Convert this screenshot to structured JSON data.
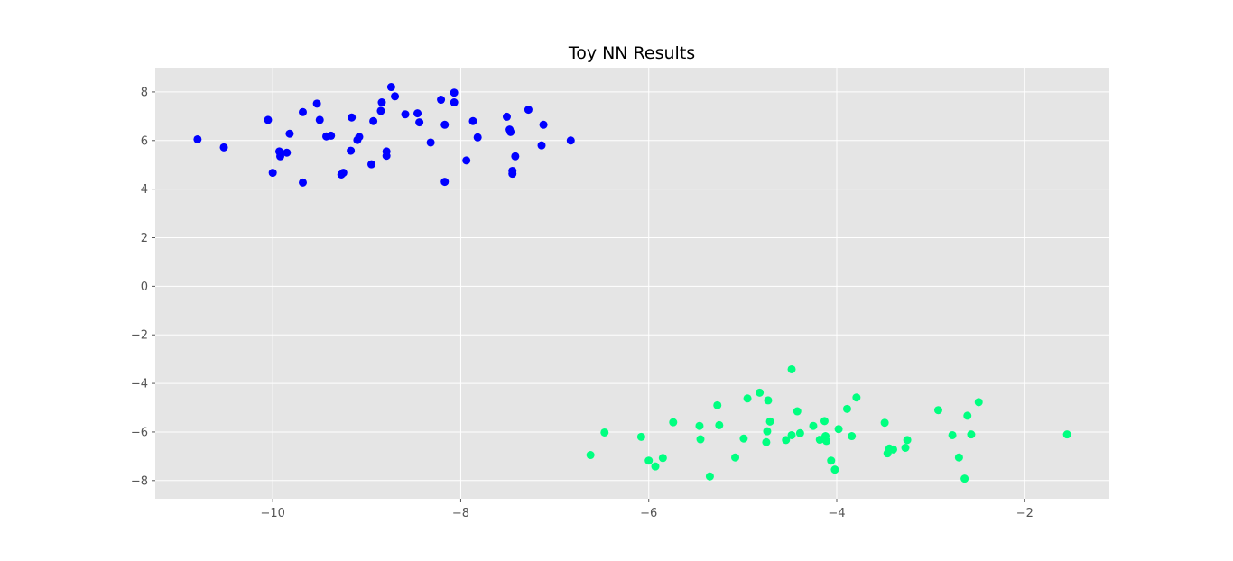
{
  "chart_data": {
    "type": "scatter",
    "title": "Toy NN Results",
    "xlabel": "",
    "ylabel": "",
    "xlim": [
      -11.25,
      -1.1
    ],
    "ylim": [
      -8.75,
      9.0
    ],
    "xticks": [
      -10,
      -8,
      -6,
      -4,
      -2
    ],
    "yticks": [
      -8,
      -6,
      -4,
      -2,
      0,
      2,
      4,
      6,
      8
    ],
    "xtick_labels": [
      "−10",
      "−8",
      "−6",
      "−4",
      "−2"
    ],
    "ytick_labels": [
      "−8",
      "−6",
      "−4",
      "−2",
      "0",
      "2",
      "4",
      "6",
      "8"
    ],
    "grid": true,
    "background": "#e5e5e5",
    "series": [
      {
        "color": "#0000ff",
        "x": [
          -10.8,
          -10.52,
          -10.05,
          -10.0,
          -9.93,
          -9.92,
          -9.85,
          -9.82,
          -9.68,
          -9.68,
          -9.53,
          -9.5,
          -9.43,
          -9.38,
          -9.27,
          -9.25,
          -9.17,
          -9.16,
          -9.1,
          -9.08,
          -8.95,
          -8.93,
          -8.85,
          -8.84,
          -8.79,
          -8.79,
          -8.74,
          -8.7,
          -8.59,
          -8.46,
          -8.44,
          -8.32,
          -8.21,
          -8.17,
          -8.17,
          -8.07,
          -8.07,
          -7.94,
          -7.87,
          -7.82,
          -7.51,
          -7.48,
          -7.47,
          -7.45,
          -7.45,
          -7.42,
          -7.14,
          -7.28,
          -7.12,
          -6.83
        ],
        "y": [
          6.05,
          5.72,
          6.85,
          4.67,
          5.55,
          5.35,
          5.5,
          6.28,
          4.27,
          7.17,
          7.52,
          6.85,
          6.17,
          6.2,
          4.6,
          4.67,
          5.58,
          6.95,
          6.02,
          6.15,
          5.02,
          6.8,
          7.22,
          7.57,
          5.55,
          5.37,
          8.2,
          7.82,
          7.08,
          7.12,
          6.75,
          5.92,
          7.68,
          4.3,
          6.65,
          7.97,
          7.57,
          5.18,
          6.8,
          6.13,
          6.98,
          6.45,
          6.35,
          4.75,
          4.63,
          5.35,
          5.8,
          7.27,
          6.65,
          6.0
        ]
      },
      {
        "color": "#00ff80",
        "x": [
          -6.62,
          -6.47,
          -6.08,
          -6.0,
          -5.93,
          -5.85,
          -5.74,
          -5.46,
          -5.45,
          -5.35,
          -5.27,
          -5.25,
          -5.08,
          -4.99,
          -4.95,
          -4.82,
          -4.75,
          -4.74,
          -4.73,
          -4.71,
          -4.54,
          -4.48,
          -4.48,
          -4.42,
          -4.39,
          -4.25,
          -4.18,
          -4.13,
          -4.12,
          -4.11,
          -4.06,
          -4.02,
          -3.98,
          -3.89,
          -3.84,
          -3.79,
          -3.49,
          -3.46,
          -3.44,
          -3.4,
          -3.27,
          -3.25,
          -2.92,
          -2.77,
          -2.7,
          -2.64,
          -2.61,
          -2.57,
          -2.49,
          -1.55
        ],
        "y": [
          -6.95,
          -6.02,
          -6.2,
          -7.18,
          -7.42,
          -7.07,
          -5.6,
          -5.75,
          -6.3,
          -7.83,
          -4.9,
          -5.72,
          -7.05,
          -6.27,
          -4.62,
          -4.38,
          -6.42,
          -5.97,
          -4.7,
          -5.57,
          -6.33,
          -6.13,
          -3.42,
          -5.15,
          -6.05,
          -5.75,
          -6.32,
          -5.55,
          -6.17,
          -6.37,
          -7.18,
          -7.55,
          -5.88,
          -5.05,
          -6.17,
          -4.58,
          -5.62,
          -6.88,
          -6.68,
          -6.72,
          -6.65,
          -6.33,
          -5.1,
          -6.13,
          -7.05,
          -7.92,
          -5.33,
          -6.1,
          -4.77,
          -6.1
        ]
      }
    ]
  }
}
